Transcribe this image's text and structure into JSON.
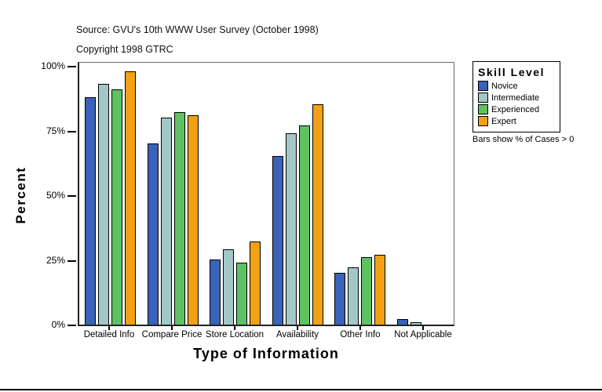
{
  "header": {
    "source": "Source: GVU's 10th WWW User Survey (October 1998)",
    "copyright": "Copyright 1998 GTRC"
  },
  "chart_data": {
    "type": "bar",
    "title": "",
    "xlabel": "Type of Information",
    "ylabel": "Percent",
    "legend_title": "Skill Level",
    "note": "Bars show % of Cases > 0",
    "legend_position": "top-right-outside",
    "grid": false,
    "ylim": [
      0,
      100
    ],
    "yticks": [
      {
        "label": "0%",
        "value": 0
      },
      {
        "label": "25%",
        "value": 25
      },
      {
        "label": "50%",
        "value": 50
      },
      {
        "label": "75%",
        "value": 75
      },
      {
        "label": "100%",
        "value": 100
      }
    ],
    "categories": [
      "Detailed Info",
      "Compare Price",
      "Store Location",
      "Availability",
      "Other Info",
      "Not Applicable"
    ],
    "series": [
      {
        "name": "Novice",
        "color": "#3a62b8",
        "values": [
          88,
          70,
          25,
          65,
          20,
          2
        ]
      },
      {
        "name": "Intermediate",
        "color": "#a3c7c6",
        "values": [
          93,
          80,
          29,
          74,
          22,
          1
        ]
      },
      {
        "name": "Experienced",
        "color": "#5ec263",
        "values": [
          91,
          82,
          24,
          77,
          26,
          0
        ]
      },
      {
        "name": "Expert",
        "color": "#f1a113",
        "values": [
          98,
          81,
          32,
          85,
          27,
          0
        ]
      }
    ]
  }
}
